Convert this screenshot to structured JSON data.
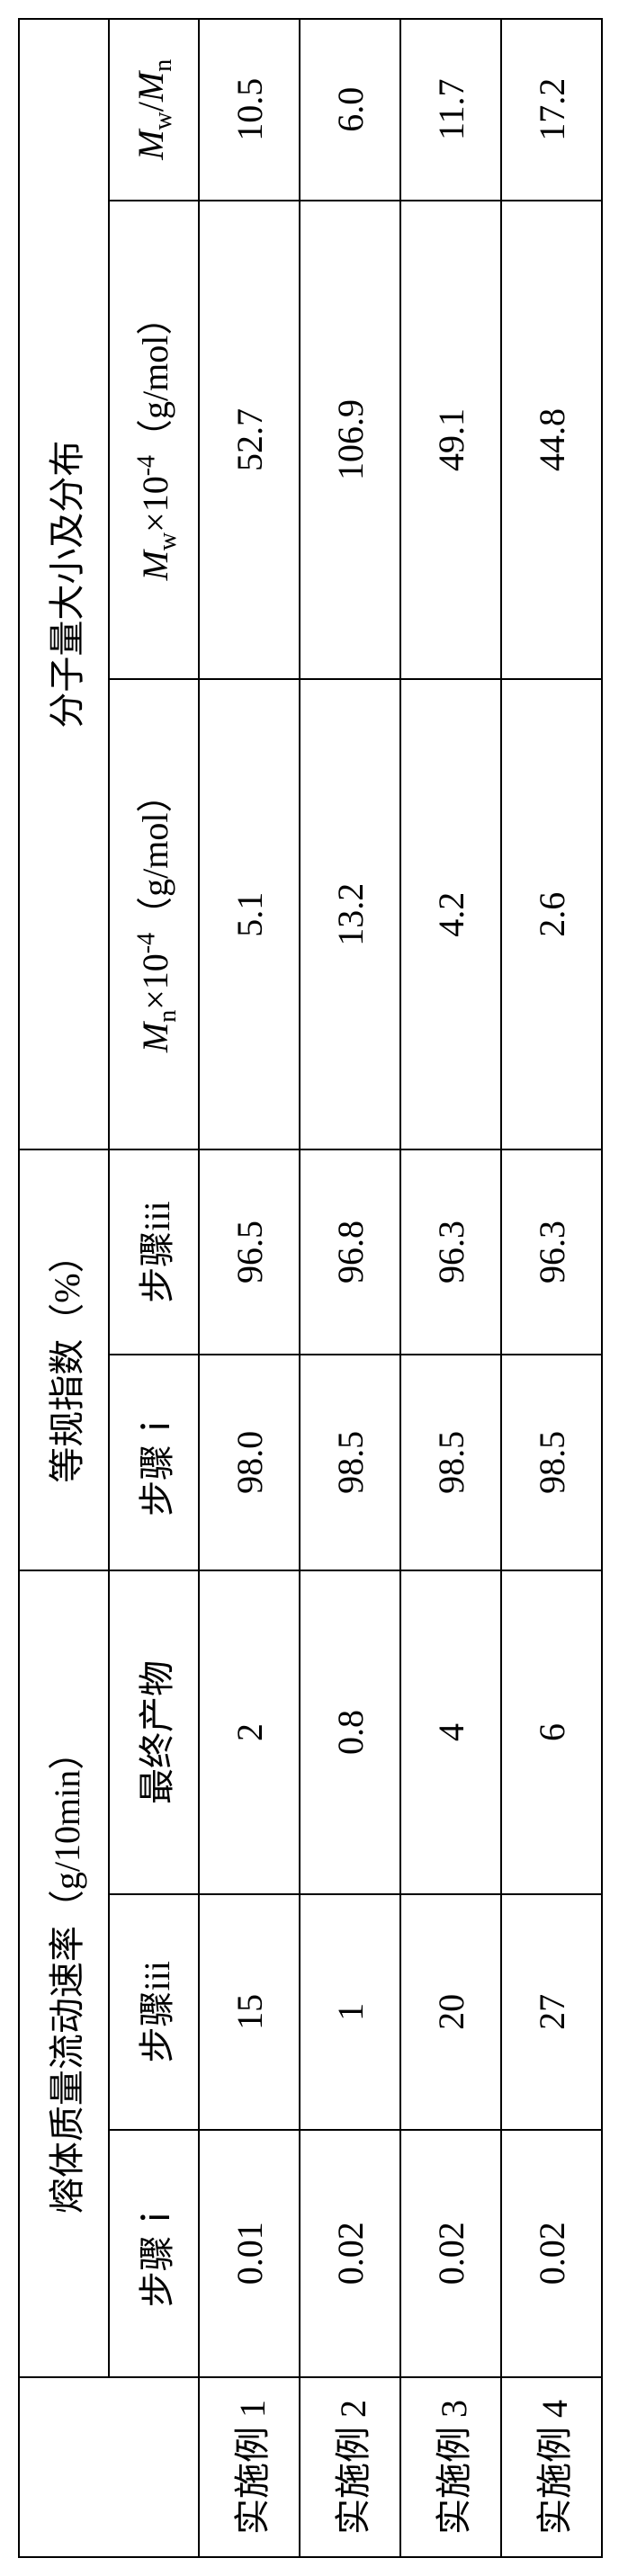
{
  "table": {
    "groupHeaders": [
      "熔体质量流动速率（g/10min）",
      "等规指数（%）",
      "分子量大小及分布"
    ],
    "subHeaders": {
      "mfr": [
        "步骤ｉ",
        "步骤iii",
        "最终产物"
      ],
      "iso": [
        "步骤ｉ",
        "步骤iii"
      ],
      "mw": {
        "mn_prefix": "M",
        "mn_sub": "n",
        "mn_suffix": "×10",
        "mn_sup": "-4",
        "mn_unit": "（g/mol）",
        "mw_prefix": "M",
        "mw_sub": "w",
        "mw_suffix": "×10",
        "mw_sup": "-4",
        "mw_unit": "（g/mol）",
        "pdi_num_prefix": "M",
        "pdi_num_sub": "w",
        "pdi_slash": "/",
        "pdi_den_prefix": "M",
        "pdi_den_sub": "n"
      }
    },
    "rows": [
      {
        "label": "实施例 1",
        "mfr_i": "0.01",
        "mfr_iii": "15",
        "mfr_final": "2",
        "iso_i": "98.0",
        "iso_iii": "96.5",
        "mn": "5.1",
        "mw": "52.7",
        "pdi": "10.5"
      },
      {
        "label": "实施例 2",
        "mfr_i": "0.02",
        "mfr_iii": "1",
        "mfr_final": "0.8",
        "iso_i": "98.5",
        "iso_iii": "96.8",
        "mn": "13.2",
        "mw": "106.9",
        "pdi": "6.0"
      },
      {
        "label": "实施例 3",
        "mfr_i": "0.02",
        "mfr_iii": "20",
        "mfr_final": "4",
        "iso_i": "98.5",
        "iso_iii": "96.3",
        "mn": "4.2",
        "mw": "49.1",
        "pdi": "11.7"
      },
      {
        "label": "实施例 4",
        "mfr_i": "0.02",
        "mfr_iii": "27",
        "mfr_final": "6",
        "iso_i": "98.5",
        "iso_iii": "96.3",
        "mn": "2.6",
        "mw": "44.8",
        "pdi": "17.2"
      }
    ]
  }
}
